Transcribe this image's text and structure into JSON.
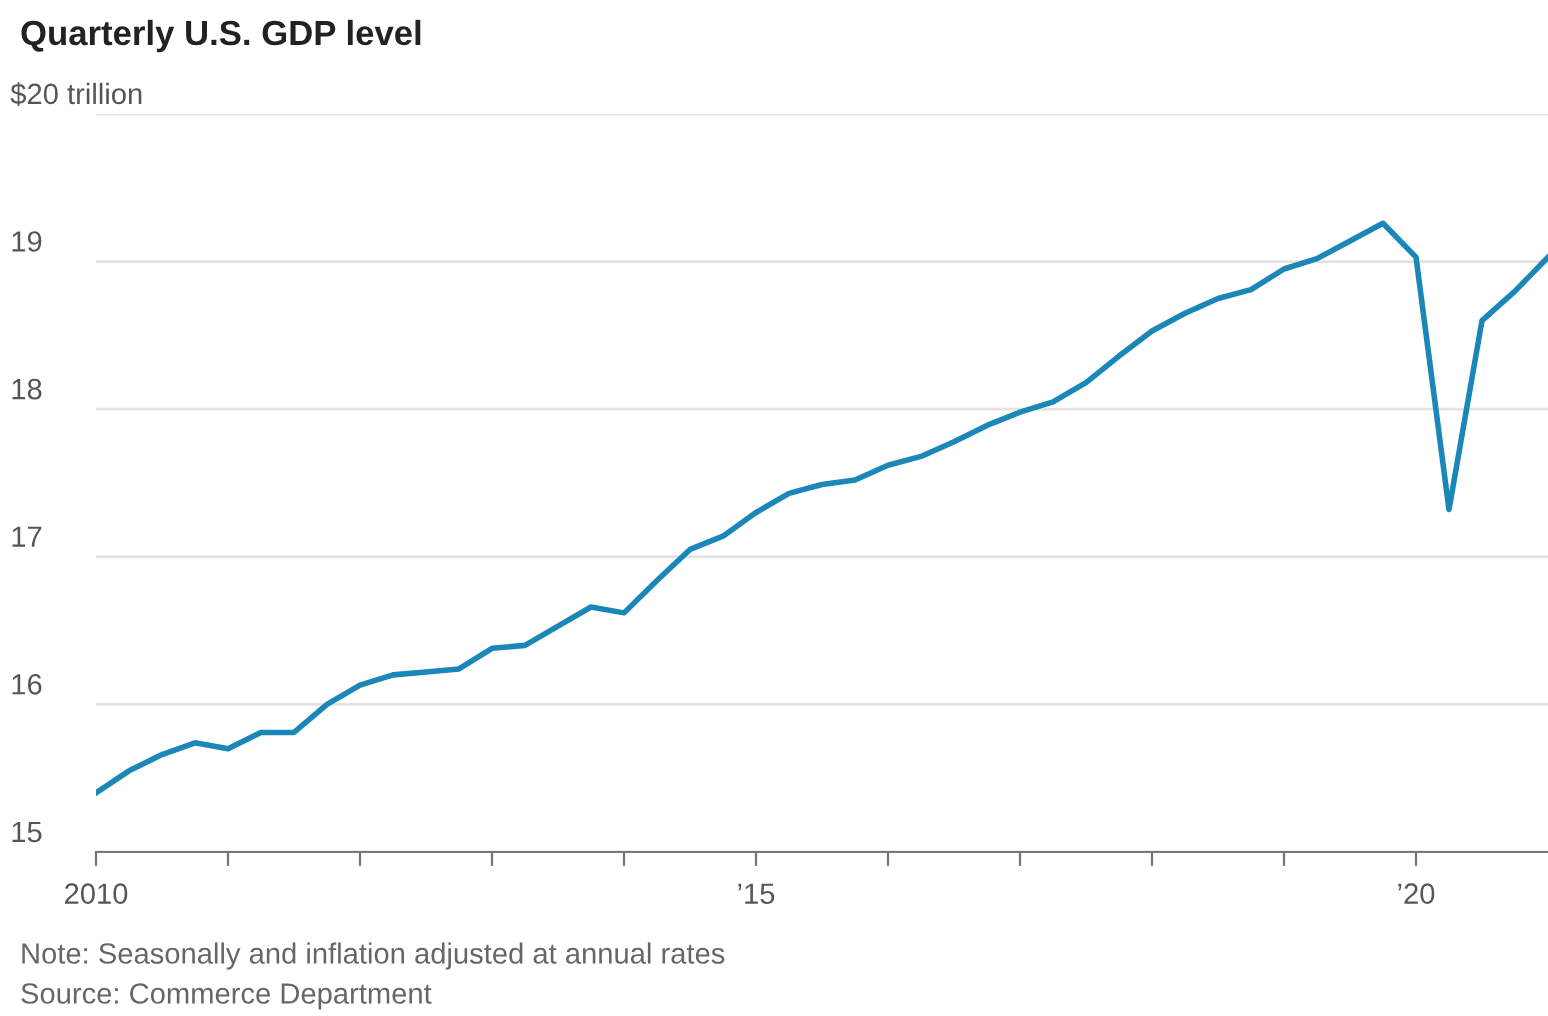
{
  "chart_data": {
    "type": "line",
    "title": "Quarterly U.S. GDP level",
    "x": [
      2010,
      2010.25,
      2010.5,
      2010.75,
      2011,
      2011.25,
      2011.5,
      2011.75,
      2012,
      2012.25,
      2012.5,
      2012.75,
      2013,
      2013.25,
      2013.5,
      2013.75,
      2014,
      2014.25,
      2014.5,
      2014.75,
      2015,
      2015.25,
      2015.5,
      2015.75,
      2016,
      2016.25,
      2016.5,
      2016.75,
      2017,
      2017.25,
      2017.5,
      2017.75,
      2018,
      2018.25,
      2018.5,
      2018.75,
      2019,
      2019.25,
      2019.5,
      2019.75,
      2020,
      2020.25,
      2020.5,
      2020.75,
      2021
    ],
    "series": [
      {
        "color": "#1b86b8",
        "values": [
          15.4,
          15.55,
          15.66,
          15.74,
          15.7,
          15.81,
          15.81,
          16.0,
          16.13,
          16.2,
          16.22,
          16.24,
          16.38,
          16.4,
          16.53,
          16.66,
          16.62,
          16.84,
          17.05,
          17.14,
          17.3,
          17.43,
          17.49,
          17.52,
          17.62,
          17.68,
          17.78,
          17.89,
          17.98,
          18.05,
          18.18,
          18.36,
          18.53,
          18.65,
          18.75,
          18.81,
          18.95,
          19.02,
          19.14,
          19.26,
          19.03,
          17.32,
          18.6,
          18.8,
          19.03
        ]
      }
    ],
    "xlim": [
      2010,
      2021
    ],
    "xticks": [
      {
        "value": 2010,
        "label": "2010"
      },
      {
        "value": 2011,
        "label": null
      },
      {
        "value": 2012,
        "label": null
      },
      {
        "value": 2013,
        "label": null
      },
      {
        "value": 2014,
        "label": null
      },
      {
        "value": 2015,
        "label": "’15"
      },
      {
        "value": 2016,
        "label": null
      },
      {
        "value": 2017,
        "label": null
      },
      {
        "value": 2018,
        "label": null
      },
      {
        "value": 2019,
        "label": null
      },
      {
        "value": 2020,
        "label": "’20"
      }
    ],
    "ylim": [
      15,
      20
    ],
    "yticks": [
      15,
      16,
      17,
      18,
      19,
      {
        "value": 20,
        "label": "$20 trillion"
      }
    ],
    "grid": "y",
    "legend": false,
    "marker": "none",
    "line_style": "solid",
    "annotations": [
      "Note: Seasonally and inflation adjusted at annual rates",
      "Source: Commerce Department"
    ]
  }
}
